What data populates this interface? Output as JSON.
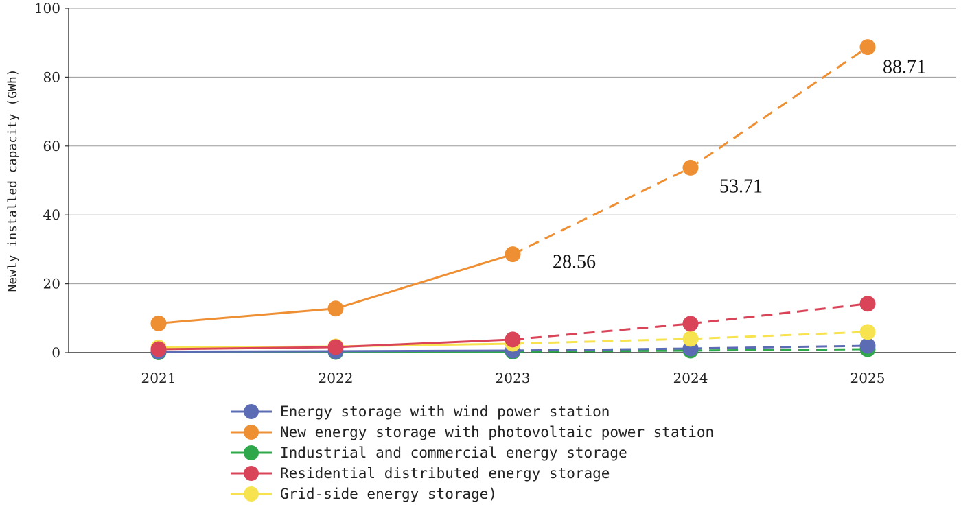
{
  "chart_data": {
    "type": "line",
    "title": "",
    "xlabel": "",
    "ylabel": "Newly installed capacity (GWh)",
    "ylim": [
      0,
      100
    ],
    "yticks": [
      "0",
      "20",
      "40",
      "60",
      "80",
      "100"
    ],
    "categories": [
      "2021",
      "2022",
      "2023",
      "2024",
      "2025"
    ],
    "actual_through": "2023",
    "forecast_from": "2023",
    "grid": "horizontal",
    "legend_position": "bottom",
    "series": [
      {
        "name": "Energy storage with wind power station",
        "color": "#5b6bb4",
        "values": [
          0.3,
          0.4,
          0.6,
          1.2,
          2.0
        ]
      },
      {
        "name": "New energy storage with photovoltaic power station",
        "color": "#ee8f34",
        "values": [
          8.5,
          12.8,
          28.56,
          53.71,
          88.71
        ]
      },
      {
        "name": "Industrial and commercial energy storage",
        "color": "#2ea84a",
        "values": [
          0.1,
          0.2,
          0.3,
          0.6,
          1.0
        ]
      },
      {
        "name": "Residential distributed energy storage",
        "color": "#d94458",
        "values": [
          1.0,
          1.6,
          3.8,
          8.4,
          14.2
        ]
      },
      {
        "name": "Grid-side energy storage)",
        "color": "#f7e34f",
        "values": [
          1.5,
          1.8,
          2.6,
          4.0,
          6.0
        ]
      }
    ],
    "annotations": [
      {
        "series": 1,
        "category": "2023",
        "text": "28.56"
      },
      {
        "series": 1,
        "category": "2024",
        "text": "53.71"
      },
      {
        "series": 1,
        "category": "2025",
        "text": "88.71"
      }
    ]
  }
}
